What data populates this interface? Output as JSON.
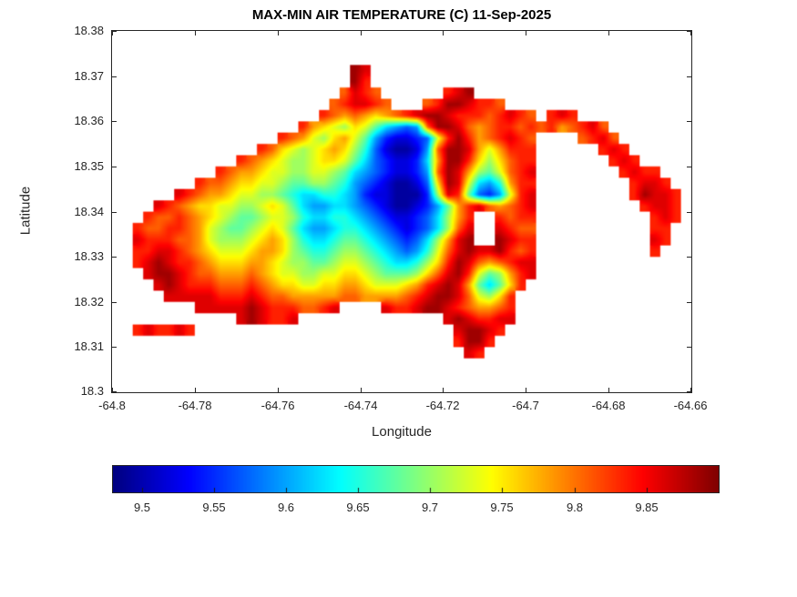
{
  "chart_data": {
    "type": "heatmap",
    "title": "MAX-MIN AIR TEMPERATURE (C) 11-Sep-2025",
    "xlabel": "Longitude",
    "ylabel": "Latitude",
    "xlim": [
      -64.8,
      -64.66
    ],
    "ylim": [
      18.3,
      18.38
    ],
    "xticks": [
      -64.8,
      -64.78,
      -64.76,
      -64.74,
      -64.72,
      -64.7,
      -64.68,
      -64.66
    ],
    "xtick_labels": [
      "-64.8",
      "-64.78",
      "-64.76",
      "-64.74",
      "-64.72",
      "-64.7",
      "-64.68",
      "-64.66"
    ],
    "yticks": [
      18.3,
      18.31,
      18.32,
      18.33,
      18.34,
      18.35,
      18.36,
      18.37,
      18.38
    ],
    "ytick_labels": [
      "18.3",
      "18.31",
      "18.32",
      "18.33",
      "18.34",
      "18.35",
      "18.36",
      "18.37",
      "18.38"
    ],
    "colormap": "jet",
    "grid_lines": "off",
    "color_scale": {
      "min": 9.48,
      "max": 9.9
    },
    "colorbar_ticks": [
      9.5,
      9.55,
      9.6,
      9.65,
      9.7,
      9.75,
      9.8,
      9.85
    ],
    "colorbar_tick_labels": [
      "9.5",
      "9.55",
      "9.6",
      "9.65",
      "9.7",
      "9.75",
      "9.8",
      "9.85"
    ],
    "grid": {
      "x0": -64.8,
      "dx": 0.0025,
      "y0": 18.38,
      "dy": -0.0025,
      "ncols": 56,
      "nrows": 32,
      "encoding": "hex char 0-f: value = min + (level+0.5)/16 * (max-min); '.' = no data",
      "rows": [
        "",
        "",
        "",
        ".......................fe",
        ".......................fd",
        "......................cedc......def",
        ".....................cdeedc...cdffeddc",
        "....................dcbcbabcdeffedddcdedc.ded",
        "..................dba98a975434cffecbcddcdcdbcdec",
        "................dcb98ab974211239dfdbcdedc....cdec",
        "..............dca989aba86310014cffeb9bddd......ded",
        "............dcba9889aa975321125bffda8acdd.......ded",
        "..........dcbba9988998754321124cfeb879cde........dedd",
        "........dccbaa99877887643210013afe9546bdd.........deed",
        "......edcbba99887655665421100028ed73249de.........dfeed",
        "....edcbaa99889a97544554321001247bdecbcde..........deed",
        "...dccdcba98778998655665432112358bd..dcdd...........ded",
        "..dccddcb987789a97544566543212358ce..edcc...........dd",
        "..edddccb98889aba865567765432358bef..fedd...........ed",
        "..ddeedcba999abba876678876543469cefeefdcd...........d",
        "..defeddcbaaabba988778998765568adfecbcdee",
        "...effedccbbbcba998899aa987778acefd978bde",
        "....efedddcccdcbaa99aabba999abdefeb757ad",
        ".....eeeeedddedccbbbbbccbbbbcdeffec98ad",
        "........eeeeefedddccde....eddeffedcbbcd",
        "............efedde..............efeddee",
        "..dedded.........................effed",
        ".................................dffd",
        "..................................ed",
        "",
        "",
        ""
      ]
    }
  }
}
